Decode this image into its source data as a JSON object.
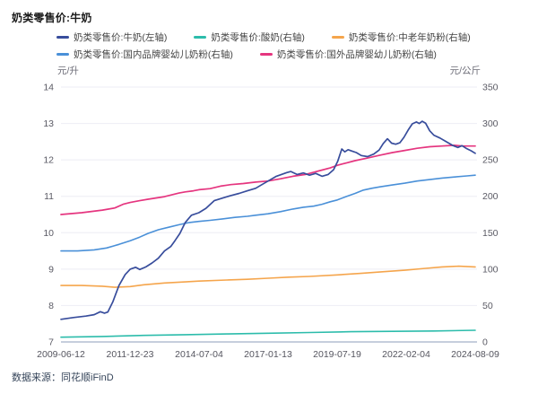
{
  "title": "奶类零售价:牛奶",
  "source_note": "数据来源：同花顺iFinD",
  "axes": {
    "left_unit": "元/升",
    "right_unit": "元/公斤",
    "left_ticks": [
      14,
      13,
      12,
      11,
      10,
      9,
      8,
      7
    ],
    "right_ticks": [
      350,
      300,
      250,
      200,
      150,
      100,
      50,
      0
    ],
    "x_ticks": [
      "2009-06-12",
      "2011-12-23",
      "2014-07-04",
      "2017-01-13",
      "2019-07-19",
      "2022-02-04",
      "2024-08-09"
    ]
  },
  "legend": {
    "rows": [
      [
        0,
        1,
        2
      ],
      [
        3,
        4
      ]
    ],
    "items": [
      {
        "id": "milk",
        "label": "奶类零售价:牛奶(左轴)",
        "color": "#384d9c"
      },
      {
        "id": "yogurt",
        "label": "奶类零售价:酸奶(右轴)",
        "color": "#2cbcab"
      },
      {
        "id": "senior-milk-powder",
        "label": "奶类零售价:中老年奶粉(右轴)",
        "color": "#f5a54c"
      },
      {
        "id": "domestic-infant-formula",
        "label": "奶类零售价:国内品牌婴幼儿奶粉(右轴)",
        "color": "#4a90d8"
      },
      {
        "id": "foreign-infant-formula",
        "label": "奶类零售价:国外品牌婴幼儿奶粉(右轴)",
        "color": "#e5357f"
      }
    ]
  },
  "chart_data": {
    "type": "line",
    "x_range": [
      "2009-06-12",
      "2024-08-09"
    ],
    "left_axis": {
      "label": "元/升",
      "min": 7,
      "max": 14,
      "grid": true
    },
    "right_axis": {
      "label": "元/公斤",
      "min": 0,
      "max": 350
    },
    "colors": {
      "grid": "#ededf4",
      "axis_line": "#b3bed2",
      "tick_text": "#5a5a64"
    },
    "series": [
      {
        "id": "yogurt",
        "name": "奶类零售价:酸奶(右轴)",
        "axis": "right",
        "color": "#2cbcab",
        "width": 1.6,
        "points": [
          [
            0,
            6.5
          ],
          [
            0.1,
            7.5
          ],
          [
            0.2,
            9
          ],
          [
            0.3,
            10
          ],
          [
            0.4,
            11
          ],
          [
            0.5,
            12
          ],
          [
            0.6,
            13
          ],
          [
            0.7,
            14
          ],
          [
            0.8,
            14.5
          ],
          [
            0.9,
            15
          ],
          [
            1,
            16
          ]
        ]
      },
      {
        "id": "senior-milk-powder",
        "name": "奶类零售价:中老年奶粉(右轴)",
        "axis": "right",
        "color": "#f5a54c",
        "width": 1.6,
        "points": [
          [
            0,
            77.5
          ],
          [
            0.05,
            77.5
          ],
          [
            0.1,
            76.5
          ],
          [
            0.13,
            75
          ],
          [
            0.167,
            76
          ],
          [
            0.2,
            78.5
          ],
          [
            0.25,
            81
          ],
          [
            0.3,
            82.5
          ],
          [
            0.333,
            83.5
          ],
          [
            0.4,
            85
          ],
          [
            0.45,
            86
          ],
          [
            0.5,
            87.5
          ],
          [
            0.55,
            89
          ],
          [
            0.6,
            90
          ],
          [
            0.667,
            92
          ],
          [
            0.72,
            94
          ],
          [
            0.78,
            96.5
          ],
          [
            0.83,
            98.5
          ],
          [
            0.88,
            101
          ],
          [
            0.92,
            103
          ],
          [
            0.96,
            104
          ],
          [
            1,
            103
          ]
        ]
      },
      {
        "id": "domestic-infant-formula",
        "name": "奶类零售价:国内品牌婴幼儿奶粉(右轴)",
        "axis": "right",
        "color": "#4a90d8",
        "width": 1.6,
        "points": [
          [
            0,
            125
          ],
          [
            0.04,
            125
          ],
          [
            0.08,
            126.5
          ],
          [
            0.11,
            129
          ],
          [
            0.14,
            134
          ],
          [
            0.167,
            139
          ],
          [
            0.19,
            144
          ],
          [
            0.21,
            149
          ],
          [
            0.235,
            154
          ],
          [
            0.26,
            157.5
          ],
          [
            0.285,
            161
          ],
          [
            0.31,
            164
          ],
          [
            0.333,
            165.5
          ],
          [
            0.36,
            167
          ],
          [
            0.39,
            169
          ],
          [
            0.42,
            171
          ],
          [
            0.45,
            172.5
          ],
          [
            0.47,
            174
          ],
          [
            0.5,
            176
          ],
          [
            0.53,
            179
          ],
          [
            0.56,
            182.5
          ],
          [
            0.585,
            185
          ],
          [
            0.61,
            186.5
          ],
          [
            0.63,
            189
          ],
          [
            0.65,
            192.5
          ],
          [
            0.667,
            195
          ],
          [
            0.69,
            200
          ],
          [
            0.71,
            204
          ],
          [
            0.73,
            208.5
          ],
          [
            0.75,
            211
          ],
          [
            0.77,
            213
          ],
          [
            0.8,
            215.5
          ],
          [
            0.83,
            218
          ],
          [
            0.86,
            221
          ],
          [
            0.89,
            223
          ],
          [
            0.92,
            225
          ],
          [
            0.95,
            226.5
          ],
          [
            0.98,
            228
          ],
          [
            1,
            229
          ]
        ]
      },
      {
        "id": "foreign-infant-formula",
        "name": "奶类零售价:国外品牌婴幼儿奶粉(右轴)",
        "axis": "right",
        "color": "#e5357f",
        "width": 1.7,
        "points": [
          [
            0,
            175
          ],
          [
            0.05,
            177.5
          ],
          [
            0.1,
            181
          ],
          [
            0.13,
            184
          ],
          [
            0.15,
            189
          ],
          [
            0.167,
            191.5
          ],
          [
            0.19,
            194
          ],
          [
            0.21,
            196
          ],
          [
            0.25,
            199.5
          ],
          [
            0.285,
            204.5
          ],
          [
            0.3,
            206
          ],
          [
            0.32,
            207.5
          ],
          [
            0.333,
            209
          ],
          [
            0.36,
            210.5
          ],
          [
            0.385,
            214
          ],
          [
            0.41,
            216
          ],
          [
            0.44,
            217.5
          ],
          [
            0.47,
            219.5
          ],
          [
            0.5,
            221
          ],
          [
            0.53,
            224
          ],
          [
            0.56,
            227.5
          ],
          [
            0.59,
            230
          ],
          [
            0.61,
            233
          ],
          [
            0.63,
            236
          ],
          [
            0.65,
            239
          ],
          [
            0.667,
            242.5
          ],
          [
            0.69,
            246
          ],
          [
            0.71,
            249
          ],
          [
            0.74,
            252.5
          ],
          [
            0.77,
            256.5
          ],
          [
            0.8,
            260
          ],
          [
            0.83,
            263
          ],
          [
            0.86,
            266
          ],
          [
            0.89,
            268
          ],
          [
            0.92,
            269
          ],
          [
            0.95,
            270
          ],
          [
            0.97,
            269
          ],
          [
            1,
            269
          ]
        ]
      },
      {
        "id": "milk",
        "name": "奶类零售价:牛奶(左轴)",
        "axis": "left",
        "color": "#384d9c",
        "width": 1.7,
        "points": [
          [
            0,
            7.62
          ],
          [
            0.03,
            7.67
          ],
          [
            0.06,
            7.71
          ],
          [
            0.08,
            7.75
          ],
          [
            0.095,
            7.83
          ],
          [
            0.105,
            7.79
          ],
          [
            0.113,
            7.82
          ],
          [
            0.125,
            8.1
          ],
          [
            0.14,
            8.55
          ],
          [
            0.155,
            8.85
          ],
          [
            0.167,
            9.0
          ],
          [
            0.18,
            9.05
          ],
          [
            0.19,
            8.99
          ],
          [
            0.205,
            9.06
          ],
          [
            0.22,
            9.17
          ],
          [
            0.235,
            9.3
          ],
          [
            0.25,
            9.5
          ],
          [
            0.265,
            9.62
          ],
          [
            0.275,
            9.78
          ],
          [
            0.287,
            9.98
          ],
          [
            0.3,
            10.28
          ],
          [
            0.315,
            10.48
          ],
          [
            0.333,
            10.55
          ],
          [
            0.35,
            10.67
          ],
          [
            0.37,
            10.88
          ],
          [
            0.39,
            10.95
          ],
          [
            0.41,
            11.02
          ],
          [
            0.43,
            11.08
          ],
          [
            0.45,
            11.15
          ],
          [
            0.47,
            11.22
          ],
          [
            0.485,
            11.32
          ],
          [
            0.5,
            11.42
          ],
          [
            0.52,
            11.55
          ],
          [
            0.545,
            11.65
          ],
          [
            0.555,
            11.68
          ],
          [
            0.57,
            11.6
          ],
          [
            0.585,
            11.64
          ],
          [
            0.6,
            11.58
          ],
          [
            0.615,
            11.63
          ],
          [
            0.63,
            11.55
          ],
          [
            0.645,
            11.6
          ],
          [
            0.658,
            11.73
          ],
          [
            0.668,
            11.96
          ],
          [
            0.678,
            12.3
          ],
          [
            0.685,
            12.22
          ],
          [
            0.693,
            12.28
          ],
          [
            0.703,
            12.24
          ],
          [
            0.713,
            12.2
          ],
          [
            0.725,
            12.12
          ],
          [
            0.74,
            12.09
          ],
          [
            0.755,
            12.16
          ],
          [
            0.768,
            12.27
          ],
          [
            0.778,
            12.45
          ],
          [
            0.788,
            12.58
          ],
          [
            0.798,
            12.46
          ],
          [
            0.808,
            12.43
          ],
          [
            0.818,
            12.47
          ],
          [
            0.828,
            12.62
          ],
          [
            0.838,
            12.82
          ],
          [
            0.848,
            12.99
          ],
          [
            0.858,
            13.04
          ],
          [
            0.865,
            13.0
          ],
          [
            0.872,
            13.06
          ],
          [
            0.88,
            13.01
          ],
          [
            0.89,
            12.8
          ],
          [
            0.9,
            12.68
          ],
          [
            0.915,
            12.6
          ],
          [
            0.93,
            12.5
          ],
          [
            0.945,
            12.4
          ],
          [
            0.958,
            12.34
          ],
          [
            0.968,
            12.39
          ],
          [
            0.978,
            12.32
          ],
          [
            0.99,
            12.25
          ],
          [
            1,
            12.18
          ]
        ]
      }
    ]
  }
}
